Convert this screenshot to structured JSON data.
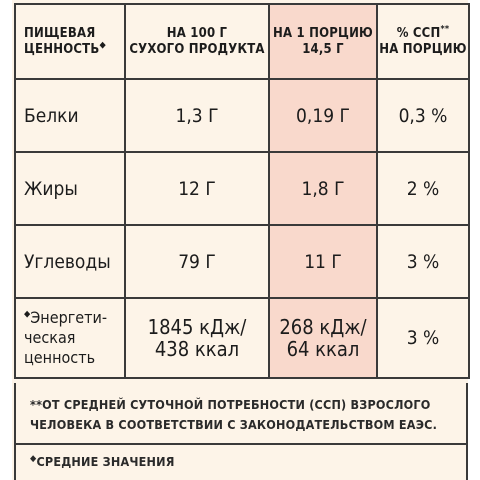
{
  "header": {
    "col1": "ПИЩЕВАЯ ЦЕННОСТЬ",
    "col1_mark": "◆",
    "col2_line1": "НА 100 Г",
    "col2_line2": "СУХОГО ПРОДУКТА",
    "col3_line1": "НА 1 ПОРЦИЮ",
    "col3_line2": "14,5 Г",
    "col4_line1": "% ССП",
    "col4_mark": "**",
    "col4_line2": "НА ПОРЦИЮ"
  },
  "rows": [
    {
      "label": "Белки",
      "per100": "1,3 Г",
      "perServing": "0,19 Г",
      "pct": "0,3 %"
    },
    {
      "label": "Жиры",
      "per100": "12 Г",
      "perServing": "1,8 Г",
      "pct": "2 %"
    },
    {
      "label": "Углеводы",
      "per100": "79 Г",
      "perServing": "11 Г",
      "pct": "3 %"
    }
  ],
  "energy": {
    "mark": "◆",
    "label_line1": "Энергети-",
    "label_line2": "ческая",
    "label_line3": "ценность",
    "per100_line1": "1845 кДж/",
    "per100_line2": "438 ккал",
    "perServing_line1": "268 кДж/",
    "perServing_line2": "64 ккал",
    "pct": "3 %"
  },
  "notes": {
    "note1_line1": "**ОТ СРЕДНЕЙ СУТОЧНОЙ ПОТРЕБНОСТИ (ССП) ВЗРОСЛОГО",
    "note1_line2": "ЧЕЛОВЕКА В СООТВЕТСТВИИ С ЗАКОНОДАТЕЛЬСТВОМ ЕАЭС.",
    "note2_mark": "◆",
    "note2": "СРЕДНИЕ ЗНАЧЕНИЯ"
  },
  "colors": {
    "background": "#fdf4e8",
    "highlight": "#f9d9cc",
    "border": "#3a3a3a"
  }
}
